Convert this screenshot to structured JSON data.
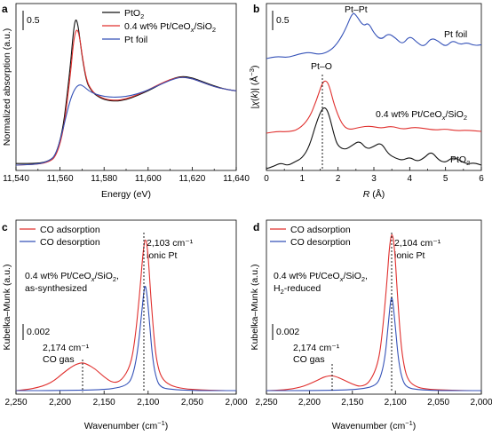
{
  "chart_data": [
    {
      "panel": "a",
      "type": "line",
      "xlabel": "Energy (eV)",
      "ylabel": "Normalized absorption (a.u.)",
      "xlim": [
        11540,
        11640
      ],
      "x_ticks": [
        "11,540",
        "11,560",
        "11,580",
        "11,600",
        "11,620",
        "11,640"
      ],
      "scale_bar": "0.5",
      "legend": [
        "PtO",
        "0.4 wt% Pt/CeO",
        "/SiO",
        "Pt foil"
      ],
      "legend_subs": [
        "2",
        "x",
        "2"
      ],
      "colors": {
        "PtO2": "#111111",
        "catalyst": "#e0302e",
        "foil": "#3552b8"
      },
      "series": [
        {
          "id": "PtO2",
          "x": [
            11540,
            11550,
            11555,
            11558,
            11561,
            11563,
            11565,
            11566,
            11567,
            11568,
            11569,
            11570,
            11572,
            11574,
            11576,
            11580,
            11585,
            11590,
            11595,
            11600,
            11605,
            11610,
            11615,
            11620,
            11625,
            11630,
            11635,
            11640
          ],
          "y": [
            0.02,
            0.02,
            0.05,
            0.12,
            0.4,
            0.8,
            1.3,
            1.62,
            1.8,
            1.74,
            1.55,
            1.33,
            1.02,
            0.92,
            0.86,
            0.8,
            0.78,
            0.8,
            0.85,
            0.91,
            0.98,
            1.05,
            1.09,
            1.07,
            1.02,
            0.97,
            0.93,
            0.91
          ]
        },
        {
          "id": "catalyst",
          "x": [
            11540,
            11550,
            11555,
            11558,
            11561,
            11563,
            11565,
            11566,
            11567,
            11568,
            11569,
            11570,
            11572,
            11574,
            11576,
            11580,
            11585,
            11590,
            11595,
            11600,
            11605,
            11610,
            11615,
            11620,
            11625,
            11630,
            11635,
            11640
          ],
          "y": [
            0.0,
            0.01,
            0.04,
            0.1,
            0.35,
            0.72,
            1.18,
            1.48,
            1.64,
            1.66,
            1.55,
            1.35,
            1.04,
            0.93,
            0.87,
            0.81,
            0.79,
            0.81,
            0.86,
            0.92,
            0.99,
            1.05,
            1.08,
            1.06,
            1.01,
            0.96,
            0.93,
            0.91
          ]
        },
        {
          "id": "foil",
          "x": [
            11540,
            11550,
            11555,
            11558,
            11561,
            11563,
            11565,
            11567,
            11569,
            11571,
            11573,
            11576,
            11580,
            11585,
            11590,
            11595,
            11600,
            11605,
            11610,
            11615,
            11620,
            11625,
            11630,
            11635,
            11640
          ],
          "y": [
            0.0,
            0.01,
            0.05,
            0.12,
            0.4,
            0.63,
            0.83,
            0.95,
            0.99,
            0.96,
            0.91,
            0.87,
            0.84,
            0.83,
            0.84,
            0.87,
            0.92,
            0.98,
            1.04,
            1.08,
            1.06,
            1.01,
            0.96,
            0.93,
            0.91
          ]
        }
      ]
    },
    {
      "panel": "b",
      "type": "line",
      "xlabel": "R (Å)",
      "ylabel": "|χ(k)| (Å⁻³)",
      "xlim": [
        0,
        6
      ],
      "x_ticks": [
        "0",
        "1",
        "2",
        "3",
        "4",
        "5",
        "6"
      ],
      "scale_bar": "0.5",
      "labels": {
        "ptpt": "Pt–Pt",
        "pto": "Pt–O",
        "foil": "Pt foil",
        "cat": "0.4 wt% Pt/CeO",
        "cat2": "/SiO",
        "pto2": "PtO",
        "sub2": "2",
        "subx": "x"
      },
      "series": [
        {
          "id": "foil",
          "x": [
            0,
            0.3,
            0.6,
            0.9,
            1.2,
            1.5,
            1.8,
            2.0,
            2.2,
            2.4,
            2.5,
            2.7,
            2.85,
            3.0,
            3.2,
            3.4,
            3.6,
            3.8,
            4.0,
            4.2,
            4.4,
            4.6,
            4.8,
            5.0,
            5.2,
            5.4,
            5.6,
            5.8,
            6.0
          ],
          "y": [
            0.0,
            0.05,
            0.02,
            0.1,
            0.14,
            0.08,
            0.18,
            0.35,
            0.62,
            1.0,
            0.95,
            0.7,
            0.78,
            0.55,
            0.4,
            0.55,
            0.45,
            0.3,
            0.5,
            0.35,
            0.25,
            0.45,
            0.38,
            0.25,
            0.4,
            0.3,
            0.35,
            0.28,
            0.3
          ]
        },
        {
          "id": "catalyst",
          "x": [
            0,
            0.3,
            0.6,
            0.9,
            1.2,
            1.4,
            1.55,
            1.65,
            1.75,
            1.9,
            2.1,
            2.3,
            2.6,
            2.9,
            3.2,
            3.5,
            3.8,
            4.1,
            4.4,
            4.7,
            5.0,
            5.3,
            5.6,
            6.0
          ],
          "y": [
            0.0,
            0.03,
            0.02,
            0.06,
            0.25,
            0.55,
            0.82,
            0.88,
            0.8,
            0.45,
            0.15,
            0.05,
            0.1,
            0.12,
            0.08,
            0.12,
            0.06,
            0.1,
            0.08,
            0.05,
            0.07,
            0.04,
            0.05,
            0.03
          ]
        },
        {
          "id": "PtO2",
          "x": [
            0,
            0.2,
            0.4,
            0.6,
            0.8,
            1.0,
            1.2,
            1.4,
            1.55,
            1.65,
            1.75,
            1.9,
            2.0,
            2.2,
            2.4,
            2.6,
            2.8,
            3.0,
            3.2,
            3.4,
            3.6,
            3.8,
            4.0,
            4.2,
            4.4,
            4.6,
            4.8,
            5.0,
            5.2,
            5.4,
            5.6,
            5.8,
            6.0
          ],
          "y": [
            0.0,
            0.04,
            0.1,
            0.05,
            0.12,
            0.18,
            0.38,
            0.8,
            1.02,
            1.05,
            0.92,
            0.55,
            0.38,
            0.32,
            0.4,
            0.48,
            0.33,
            0.38,
            0.45,
            0.25,
            0.18,
            0.14,
            0.2,
            0.12,
            0.18,
            0.3,
            0.15,
            0.1,
            0.2,
            0.14,
            0.08,
            0.1,
            0.06
          ]
        }
      ]
    },
    {
      "panel": "c",
      "type": "line",
      "xlabel": "Wavenumber (cm⁻¹)",
      "ylabel": "Kubelka–Munk (a.u.)",
      "xlim": [
        2250,
        2000
      ],
      "x_ticks": [
        "2,250",
        "2,200",
        "2,150",
        "2,100",
        "2,050",
        "2,000"
      ],
      "scale_bar": "0.002",
      "legend": [
        "CO adsorption",
        "CO desorption"
      ],
      "sample": [
        "0.4 wt% Pt/CeO",
        "/SiO",
        ",",
        "as-synthesized"
      ],
      "peak1": [
        "2,103 cm⁻¹",
        "ionic Pt"
      ],
      "peak2": [
        "2,174 cm⁻¹",
        "CO gas"
      ],
      "series": [
        {
          "id": "CO adsorption",
          "x": [
            2250,
            2230,
            2210,
            2195,
            2185,
            2180,
            2175,
            2170,
            2160,
            2150,
            2140,
            2130,
            2120,
            2115,
            2110,
            2106,
            2103,
            2100,
            2097,
            2093,
            2090,
            2085,
            2075,
            2060,
            2040,
            2020,
            2000
          ],
          "y": [
            0.0,
            0.0003,
            0.0012,
            0.003,
            0.004,
            0.0043,
            0.0045,
            0.0043,
            0.0035,
            0.0022,
            0.0012,
            0.0016,
            0.004,
            0.008,
            0.015,
            0.022,
            0.025,
            0.022,
            0.015,
            0.008,
            0.0045,
            0.002,
            0.0008,
            0.0003,
            0.0001,
            0.0,
            0.0
          ]
        },
        {
          "id": "CO desorption",
          "x": [
            2250,
            2200,
            2160,
            2140,
            2125,
            2118,
            2112,
            2107,
            2104,
            2102,
            2099,
            2095,
            2090,
            2085,
            2075,
            2050,
            2000
          ],
          "y": [
            0.0,
            0.0,
            0.0001,
            0.0003,
            0.0008,
            0.002,
            0.006,
            0.013,
            0.017,
            0.0165,
            0.012,
            0.005,
            0.0015,
            0.0005,
            0.0002,
            0.0,
            0.0
          ]
        }
      ]
    },
    {
      "panel": "d",
      "type": "line",
      "xlabel": "Wavenumber (cm⁻¹)",
      "ylabel": "Kubelka–Munk (a.u.)",
      "xlim": [
        2250,
        2000
      ],
      "x_ticks": [
        "2,250",
        "2,200",
        "2,150",
        "2,100",
        "2,050",
        "2,000"
      ],
      "scale_bar": "0.002",
      "legend": [
        "CO adsorption",
        "CO desorption"
      ],
      "sample": [
        "0.4 wt% Pt/CeO",
        "/SiO",
        ",",
        "H",
        "-reduced"
      ],
      "peak1": [
        "2,104 cm⁻¹",
        "ionic Pt"
      ],
      "peak2": [
        "2,174 cm⁻¹",
        "CO gas"
      ],
      "series": [
        {
          "id": "CO adsorption",
          "x": [
            2250,
            2230,
            2210,
            2195,
            2185,
            2180,
            2175,
            2170,
            2160,
            2150,
            2140,
            2130,
            2120,
            2115,
            2110,
            2107,
            2104,
            2101,
            2098,
            2094,
            2090,
            2085,
            2075,
            2060,
            2040,
            2020,
            2000
          ],
          "y": [
            0.0,
            0.0001,
            0.0006,
            0.0016,
            0.0024,
            0.0027,
            0.0028,
            0.0027,
            0.002,
            0.0012,
            0.0007,
            0.0015,
            0.005,
            0.011,
            0.02,
            0.027,
            0.03,
            0.027,
            0.019,
            0.0095,
            0.0045,
            0.0018,
            0.0006,
            0.0002,
            0.0001,
            0.0,
            0.0
          ]
        },
        {
          "id": "CO desorption",
          "x": [
            2250,
            2200,
            2160,
            2140,
            2125,
            2118,
            2112,
            2108,
            2105,
            2103,
            2100,
            2096,
            2091,
            2085,
            2075,
            2050,
            2000
          ],
          "y": [
            0.0,
            0.0,
            0.0001,
            0.0003,
            0.0008,
            0.002,
            0.006,
            0.013,
            0.0178,
            0.017,
            0.012,
            0.005,
            0.0015,
            0.0005,
            0.0002,
            0.0,
            0.0
          ]
        }
      ]
    }
  ]
}
